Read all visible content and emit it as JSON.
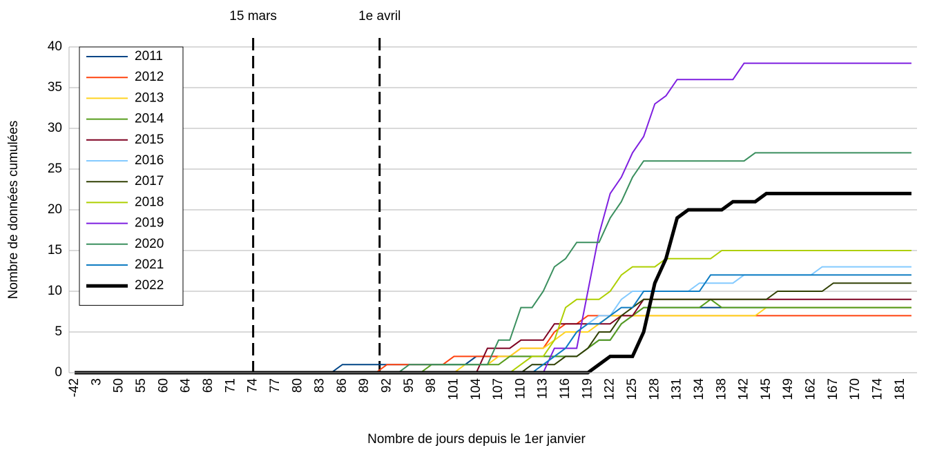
{
  "chart_data": {
    "type": "line",
    "x_label": "Nombre de jours depuis le 1er janvier",
    "y_label": "Nombre de données cumulées",
    "categories": [
      "-42",
      null,
      "3",
      null,
      "50",
      null,
      "55",
      null,
      "60",
      null,
      "64",
      null,
      "68",
      null,
      "71",
      null,
      "74",
      null,
      "77",
      null,
      "80",
      null,
      "83",
      null,
      "86",
      null,
      "89",
      null,
      "92",
      null,
      "95",
      null,
      "98",
      null,
      "101",
      null,
      "104",
      null,
      "107",
      null,
      "110",
      null,
      "113",
      null,
      "116",
      null,
      "119",
      null,
      "122",
      null,
      "125",
      null,
      "128",
      null,
      "131",
      null,
      "134",
      null,
      "138",
      null,
      "142",
      null,
      "145",
      null,
      "149",
      null,
      "162",
      null,
      "167",
      null,
      "170",
      null,
      "174",
      null,
      "181",
      null
    ],
    "ylim": [
      0,
      40
    ],
    "yticks": [
      0,
      5,
      10,
      15,
      20,
      25,
      30,
      35,
      40
    ],
    "grid": true,
    "legend": "upper left",
    "annotations": [
      {
        "text": "15 mars",
        "x": 74
      },
      {
        "text": "1e avril",
        "x": 91
      }
    ],
    "series": [
      {
        "name": "2011",
        "color": "#004586",
        "width": 2,
        "values": [
          0,
          0,
          0,
          0,
          0,
          0,
          0,
          0,
          0,
          0,
          0,
          0,
          0,
          0,
          0,
          0,
          0,
          0,
          0,
          0,
          0,
          0,
          0,
          0,
          1,
          1,
          1,
          1,
          1,
          1,
          1,
          1,
          1,
          1,
          1,
          1,
          2,
          2,
          2,
          2,
          2,
          2,
          2,
          2,
          2,
          2,
          3,
          4,
          4,
          6,
          7,
          8,
          8,
          8,
          8,
          8,
          8,
          8,
          8,
          8,
          8,
          8,
          8,
          8,
          8,
          8,
          8,
          8,
          8,
          8,
          8,
          8,
          8,
          8,
          8,
          8
        ]
      },
      {
        "name": "2012",
        "color": "#ff420e",
        "width": 2,
        "values": [
          0,
          0,
          0,
          0,
          0,
          0,
          0,
          0,
          0,
          0,
          0,
          0,
          0,
          0,
          0,
          0,
          0,
          0,
          0,
          0,
          0,
          0,
          0,
          0,
          0,
          0,
          0,
          0,
          1,
          1,
          1,
          1,
          1,
          1,
          2,
          2,
          2,
          2,
          2,
          2,
          3,
          3,
          3,
          5,
          6,
          6,
          7,
          7,
          7,
          7,
          7,
          7,
          7,
          7,
          7,
          7,
          7,
          7,
          7,
          7,
          7,
          7,
          7,
          7,
          7,
          7,
          7,
          7,
          7,
          7,
          7,
          7,
          7,
          7,
          7,
          7
        ]
      },
      {
        "name": "2013",
        "color": "#ffd320",
        "width": 2,
        "values": [
          0,
          0,
          0,
          0,
          0,
          0,
          0,
          0,
          0,
          0,
          0,
          0,
          0,
          0,
          0,
          0,
          0,
          0,
          0,
          0,
          0,
          0,
          0,
          0,
          0,
          0,
          0,
          0,
          0,
          0,
          0,
          0,
          0,
          0,
          0,
          1,
          1,
          1,
          2,
          2,
          3,
          3,
          3,
          4,
          5,
          5,
          5,
          6,
          7,
          7,
          7,
          7,
          7,
          7,
          7,
          7,
          7,
          7,
          7,
          7,
          7,
          7,
          8,
          8,
          8,
          8,
          8,
          8,
          8,
          8,
          8,
          8,
          8,
          8,
          8,
          8
        ]
      },
      {
        "name": "2014",
        "color": "#579d1c",
        "width": 2,
        "values": [
          0,
          0,
          0,
          0,
          0,
          0,
          0,
          0,
          0,
          0,
          0,
          0,
          0,
          0,
          0,
          0,
          0,
          0,
          0,
          0,
          0,
          0,
          0,
          0,
          0,
          0,
          0,
          0,
          0,
          0,
          0,
          0,
          1,
          1,
          1,
          1,
          1,
          1,
          1,
          2,
          2,
          2,
          2,
          2,
          2,
          2,
          3,
          4,
          4,
          6,
          7,
          8,
          8,
          8,
          8,
          8,
          8,
          9,
          8,
          8,
          8,
          8,
          8,
          8,
          8,
          8,
          8,
          8,
          8,
          8,
          8,
          8,
          8,
          8,
          8,
          8
        ]
      },
      {
        "name": "2015",
        "color": "#7e0021",
        "width": 2,
        "values": [
          0,
          0,
          0,
          0,
          0,
          0,
          0,
          0,
          0,
          0,
          0,
          0,
          0,
          0,
          0,
          0,
          0,
          0,
          0,
          0,
          0,
          0,
          0,
          0,
          0,
          0,
          0,
          0,
          0,
          0,
          0,
          0,
          0,
          0,
          0,
          0,
          0,
          3,
          3,
          3,
          4,
          4,
          4,
          6,
          6,
          6,
          6,
          6,
          6,
          7,
          7,
          9,
          9,
          9,
          9,
          9,
          9,
          9,
          9,
          9,
          9,
          9,
          9,
          9,
          9,
          9,
          9,
          9,
          9,
          9,
          9,
          9,
          9,
          9,
          9,
          9
        ]
      },
      {
        "name": "2016",
        "color": "#83caff",
        "width": 2,
        "values": [
          0,
          0,
          0,
          0,
          0,
          0,
          0,
          0,
          0,
          0,
          0,
          0,
          0,
          0,
          0,
          0,
          0,
          0,
          0,
          0,
          0,
          0,
          0,
          0,
          0,
          0,
          0,
          0,
          0,
          0,
          0,
          0,
          0,
          0,
          0,
          0,
          0,
          0,
          0,
          0,
          0,
          1,
          1,
          2,
          3,
          5,
          6,
          7,
          7,
          9,
          10,
          10,
          10,
          10,
          10,
          10,
          11,
          11,
          11,
          11,
          12,
          12,
          12,
          12,
          12,
          12,
          12,
          13,
          13,
          13,
          13,
          13,
          13,
          13,
          13,
          13
        ]
      },
      {
        "name": "2017",
        "color": "#314004",
        "width": 2,
        "values": [
          0,
          0,
          0,
          0,
          0,
          0,
          0,
          0,
          0,
          0,
          0,
          0,
          0,
          0,
          0,
          0,
          0,
          0,
          0,
          0,
          0,
          0,
          0,
          0,
          0,
          0,
          0,
          0,
          0,
          0,
          0,
          0,
          0,
          0,
          0,
          0,
          0,
          0,
          0,
          0,
          0,
          1,
          1,
          1,
          2,
          2,
          3,
          5,
          5,
          7,
          8,
          9,
          9,
          9,
          9,
          9,
          9,
          9,
          9,
          9,
          9,
          9,
          9,
          10,
          10,
          10,
          10,
          10,
          11,
          11,
          11,
          11,
          11,
          11,
          11,
          11
        ]
      },
      {
        "name": "2018",
        "color": "#aecf00",
        "width": 2,
        "values": [
          0,
          0,
          0,
          0,
          0,
          0,
          0,
          0,
          0,
          0,
          0,
          0,
          0,
          0,
          0,
          0,
          0,
          0,
          0,
          0,
          0,
          0,
          0,
          0,
          0,
          0,
          0,
          0,
          0,
          0,
          0,
          0,
          0,
          0,
          0,
          0,
          0,
          0,
          0,
          0,
          1,
          2,
          2,
          4,
          8,
          9,
          9,
          9,
          10,
          12,
          13,
          13,
          13,
          14,
          14,
          14,
          14,
          14,
          15,
          15,
          15,
          15,
          15,
          15,
          15,
          15,
          15,
          15,
          15,
          15,
          15,
          15,
          15,
          15,
          15,
          15
        ]
      },
      {
        "name": "2019",
        "color": "#7e1fe0",
        "width": 2,
        "values": [
          0,
          0,
          0,
          0,
          0,
          0,
          0,
          0,
          0,
          0,
          0,
          0,
          0,
          0,
          0,
          0,
          0,
          0,
          0,
          0,
          0,
          0,
          0,
          0,
          0,
          0,
          0,
          0,
          0,
          0,
          0,
          0,
          0,
          0,
          0,
          0,
          0,
          0,
          0,
          0,
          0,
          0,
          0,
          3,
          3,
          3,
          10,
          17,
          22,
          24,
          27,
          29,
          33,
          34,
          36,
          36,
          36,
          36,
          36,
          36,
          38,
          38,
          38,
          38,
          38,
          38,
          38,
          38,
          38,
          38,
          38,
          38,
          38,
          38,
          38,
          38
        ]
      },
      {
        "name": "2020",
        "color": "#3a8f5e",
        "width": 2,
        "values": [
          0,
          0,
          0,
          0,
          0,
          0,
          0,
          0,
          0,
          0,
          0,
          0,
          0,
          0,
          0,
          0,
          0,
          0,
          0,
          0,
          0,
          0,
          0,
          0,
          0,
          0,
          0,
          0,
          0,
          0,
          1,
          1,
          1,
          1,
          1,
          1,
          1,
          1,
          4,
          4,
          8,
          8,
          10,
          13,
          14,
          16,
          16,
          16,
          19,
          21,
          24,
          26,
          26,
          26,
          26,
          26,
          26,
          26,
          26,
          26,
          26,
          27,
          27,
          27,
          27,
          27,
          27,
          27,
          27,
          27,
          27,
          27,
          27,
          27,
          27,
          27
        ]
      },
      {
        "name": "2021",
        "color": "#0e7cc2",
        "width": 2,
        "values": [
          0,
          0,
          0,
          0,
          0,
          0,
          0,
          0,
          0,
          0,
          0,
          0,
          0,
          0,
          0,
          0,
          0,
          0,
          0,
          0,
          0,
          0,
          0,
          0,
          0,
          0,
          0,
          0,
          0,
          0,
          0,
          0,
          0,
          0,
          0,
          0,
          0,
          0,
          0,
          0,
          0,
          0,
          1,
          2,
          3,
          5,
          6,
          6,
          7,
          8,
          8,
          10,
          10,
          10,
          10,
          10,
          10,
          12,
          12,
          12,
          12,
          12,
          12,
          12,
          12,
          12,
          12,
          12,
          12,
          12,
          12,
          12,
          12,
          12,
          12,
          12
        ]
      },
      {
        "name": "2022",
        "color": "#000000",
        "width": 5,
        "values": [
          0,
          0,
          0,
          0,
          0,
          0,
          0,
          0,
          0,
          0,
          0,
          0,
          0,
          0,
          0,
          0,
          0,
          0,
          0,
          0,
          0,
          0,
          0,
          0,
          0,
          0,
          0,
          0,
          0,
          0,
          0,
          0,
          0,
          0,
          0,
          0,
          0,
          0,
          0,
          0,
          0,
          0,
          0,
          0,
          0,
          0,
          0,
          1,
          2,
          2,
          2,
          5,
          11,
          14,
          19,
          20,
          20,
          20,
          20,
          21,
          21,
          21,
          22,
          22,
          22,
          22,
          22,
          22,
          22,
          22,
          22,
          22,
          22,
          22,
          22,
          22
        ]
      }
    ]
  }
}
